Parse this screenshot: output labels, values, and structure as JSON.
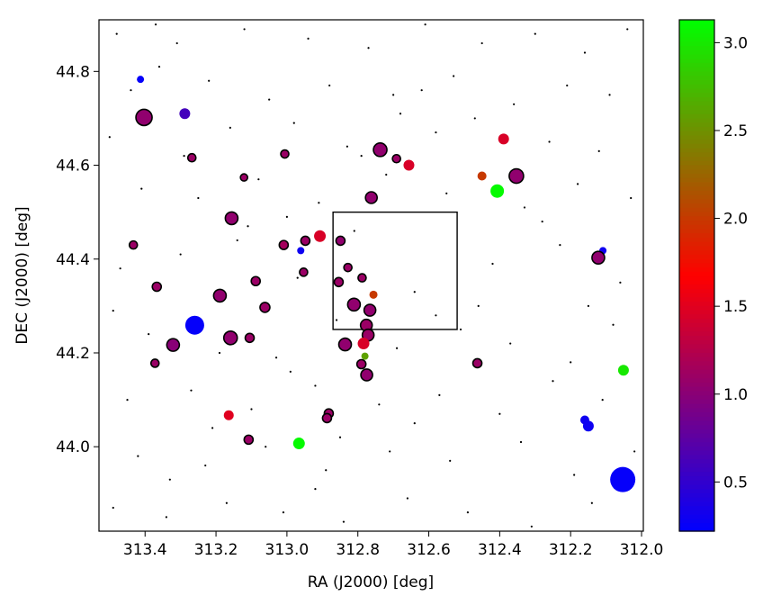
{
  "chart_data": {
    "type": "scatter",
    "xlabel": "RA (J2000) [deg]",
    "ylabel": "DEC (J2000) [deg]",
    "xlim": [
      313.53,
      311.995
    ],
    "ylim": [
      43.82,
      44.91
    ],
    "xticks": [
      313.4,
      313.2,
      {
        "value": 313.0,
        "label": "313.0"
      },
      312.8,
      312.6,
      312.4,
      312.2,
      {
        "value": 312.0,
        "label": "312.0"
      }
    ],
    "yticks": [
      {
        "value": 44.0,
        "label": "44.0"
      },
      44.2,
      44.4,
      44.6,
      44.8
    ],
    "background": {
      "color": "#000000",
      "x": [
        313.48,
        313.31,
        313.12,
        312.94,
        312.77,
        312.61,
        312.45,
        312.3,
        312.16,
        312.04,
        313.44,
        313.22,
        313.05,
        312.88,
        312.7,
        312.53,
        312.36,
        312.21,
        312.09,
        313.36,
        313.5,
        313.16,
        312.98,
        312.83,
        312.58,
        312.47,
        312.26,
        312.12,
        313.29,
        312.68,
        313.41,
        313.25,
        313.08,
        312.91,
        312.72,
        312.55,
        312.33,
        312.18,
        312.03,
        313.0,
        313.47,
        313.3,
        313.14,
        312.97,
        312.81,
        312.64,
        312.42,
        312.23,
        312.06,
        312.58,
        313.39,
        313.19,
        313.03,
        312.86,
        312.69,
        312.51,
        312.37,
        312.2,
        312.08,
        313.49,
        313.45,
        313.27,
        313.1,
        312.92,
        312.74,
        312.57,
        312.4,
        312.25,
        312.11,
        312.64,
        313.42,
        313.23,
        313.06,
        312.89,
        312.71,
        312.54,
        312.34,
        312.19,
        312.02,
        313.33,
        313.49,
        313.34,
        313.17,
        313.01,
        312.84,
        312.66,
        312.49,
        312.31,
        312.14,
        312.92,
        313.11,
        312.79,
        312.46,
        312.28,
        313.21,
        312.99,
        312.62,
        312.15,
        313.37,
        312.85
      ],
      "y": [
        44.88,
        44.86,
        44.89,
        44.87,
        44.85,
        44.9,
        44.86,
        44.88,
        44.84,
        44.89,
        44.76,
        44.78,
        44.74,
        44.77,
        44.75,
        44.79,
        44.73,
        44.77,
        44.75,
        44.81,
        44.66,
        44.68,
        44.69,
        44.64,
        44.67,
        44.7,
        44.65,
        44.63,
        44.62,
        44.71,
        44.55,
        44.53,
        44.57,
        44.52,
        44.58,
        44.54,
        44.51,
        44.56,
        44.53,
        44.49,
        44.38,
        44.41,
        44.44,
        44.36,
        44.46,
        44.33,
        44.39,
        44.43,
        44.35,
        44.28,
        44.24,
        44.2,
        44.19,
        44.27,
        44.21,
        44.25,
        44.22,
        44.18,
        44.26,
        44.29,
        44.1,
        44.12,
        44.08,
        44.13,
        44.09,
        44.11,
        44.07,
        44.14,
        44.1,
        44.05,
        43.98,
        43.96,
        44.0,
        43.95,
        43.99,
        43.97,
        44.01,
        43.94,
        43.99,
        43.93,
        43.87,
        43.85,
        43.88,
        43.86,
        43.84,
        43.89,
        43.86,
        43.83,
        43.88,
        43.91,
        44.47,
        44.62,
        44.3,
        44.48,
        44.04,
        44.16,
        44.76,
        44.3,
        44.9,
        44.02
      ]
    },
    "box": {
      "x": [
        312.87,
        312.52
      ],
      "y": [
        44.25,
        44.5
      ]
    },
    "colormap": "brg",
    "clim": [
      0.22,
      3.13
    ],
    "cticks": [
      0.5,
      {
        "value": 1.0,
        "label": "1.0"
      },
      1.5,
      {
        "value": 2.0,
        "label": "2.0"
      },
      2.5,
      {
        "value": 3.0,
        "label": "3.0"
      }
    ],
    "points": {
      "x": [
        313.413,
        313.403,
        313.288,
        313.268,
        313.121,
        313.006,
        313.156,
        313.433,
        313.367,
        313.189,
        313.088,
        313.062,
        313.26,
        313.321,
        313.159,
        313.105,
        313.372,
        313.164,
        313.108,
        312.966,
        313.009,
        312.961,
        312.948,
        312.907,
        312.953,
        312.849,
        312.828,
        312.854,
        312.788,
        312.811,
        312.766,
        312.756,
        312.776,
        312.771,
        312.784,
        312.836,
        312.79,
        312.78,
        312.775,
        312.882,
        312.887,
        312.737,
        312.691,
        312.656,
        312.762,
        312.389,
        312.45,
        312.353,
        312.407,
        312.463,
        312.109,
        312.122,
        312.051,
        312.16,
        312.15,
        312.053
      ],
      "y": [
        44.783,
        44.702,
        44.71,
        44.616,
        44.574,
        44.624,
        44.487,
        44.43,
        44.341,
        44.322,
        44.353,
        44.297,
        44.259,
        44.217,
        44.232,
        44.232,
        44.178,
        44.067,
        44.015,
        44.007,
        44.43,
        44.418,
        44.439,
        44.449,
        44.372,
        44.439,
        44.382,
        44.351,
        44.36,
        44.303,
        44.291,
        44.324,
        44.259,
        44.238,
        44.22,
        44.218,
        44.176,
        44.193,
        44.153,
        44.071,
        44.061,
        44.633,
        44.614,
        44.6,
        44.531,
        44.656,
        44.577,
        44.577,
        44.545,
        44.178,
        44.418,
        44.403,
        44.163,
        44.057,
        44.044,
        43.93
      ],
      "c": [
        0.25,
        1.05,
        0.6,
        1.1,
        1.1,
        1.1,
        1.05,
        1.1,
        1.1,
        1.05,
        1.1,
        1.1,
        0.25,
        1.0,
        1.05,
        1.1,
        1.1,
        1.5,
        1.1,
        3.1,
        1.15,
        0.3,
        1.1,
        1.45,
        1.1,
        1.05,
        1.1,
        1.1,
        1.1,
        1.05,
        1.05,
        2.0,
        1.1,
        1.1,
        1.45,
        1.05,
        1.1,
        2.6,
        1.05,
        1.1,
        1.1,
        1.05,
        1.1,
        1.45,
        1.05,
        1.45,
        2.0,
        1.05,
        3.1,
        1.1,
        0.3,
        1.05,
        3.0,
        0.3,
        0.3,
        0.25
      ],
      "sizes": [
        4,
        9,
        6,
        4.5,
        4,
        4.5,
        7,
        4.5,
        5,
        7,
        5,
        5.5,
        10.5,
        7,
        7.5,
        5,
        4.5,
        5.5,
        5,
        6.5,
        5,
        4,
        5,
        6.5,
        4.5,
        5,
        4.5,
        5,
        4.5,
        7,
        6.5,
        4.5,
        6.5,
        6.5,
        6.5,
        7,
        5,
        4,
        6.5,
        5,
        5,
        7.5,
        4.5,
        6,
        6.5,
        6,
        5,
        8,
        7.5,
        5,
        4,
        7,
        6,
        5,
        6,
        14
      ],
      "edge": [
        false,
        true,
        false,
        true,
        true,
        true,
        true,
        true,
        true,
        true,
        true,
        true,
        false,
        true,
        true,
        true,
        true,
        false,
        true,
        false,
        true,
        false,
        true,
        false,
        true,
        true,
        true,
        true,
        true,
        true,
        true,
        false,
        true,
        true,
        false,
        true,
        true,
        false,
        true,
        true,
        true,
        true,
        true,
        false,
        true,
        false,
        false,
        true,
        false,
        true,
        false,
        true,
        false,
        false,
        false,
        false
      ]
    }
  }
}
